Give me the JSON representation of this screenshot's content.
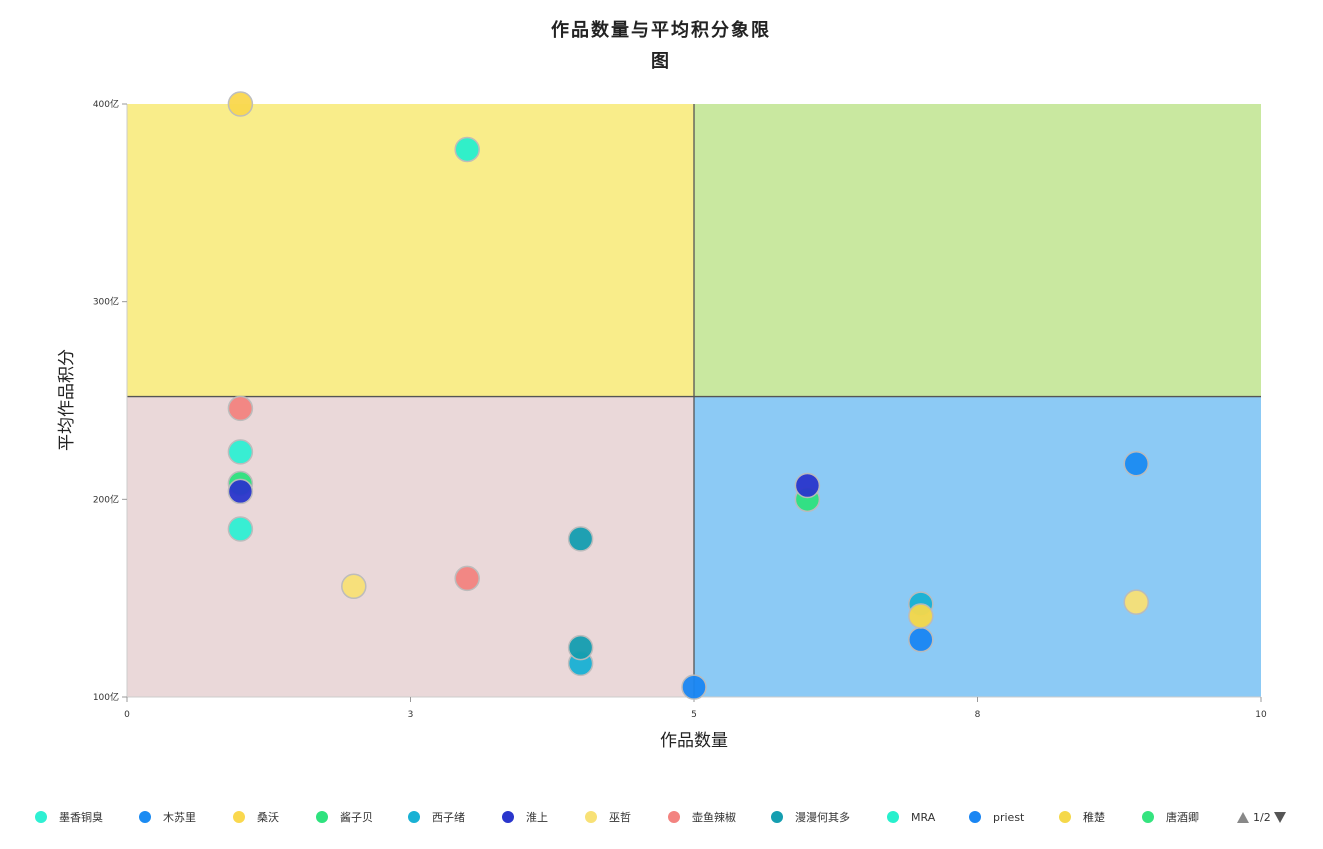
{
  "chart_data": {
    "type": "scatter",
    "title_line1": "作品数量与平均积分象限",
    "title_line2": "图",
    "xlabel": "作品数量",
    "ylabel": "平均作品积分",
    "xlim": [
      0,
      10
    ],
    "ylim": [
      100,
      400
    ],
    "x_ticks": [
      "0",
      "3",
      "5",
      "8",
      "10"
    ],
    "x_tick_values": [
      0,
      2.5,
      5,
      7.5,
      10
    ],
    "y_ticks": [
      "400亿",
      "300亿",
      "200亿",
      "100亿"
    ],
    "y_tick_values": [
      400,
      300,
      200,
      100
    ],
    "quadrant_split": {
      "x": 5,
      "y": 252
    },
    "quadrant_colors": {
      "top_left": "#f9ed8a",
      "top_right": "#c9e8a0",
      "bottom_left": "#ead8d9",
      "bottom_right": "#8ccaf5"
    },
    "series": [
      {
        "name": "墨香铜臭",
        "color": "#2ff0d3",
        "points": [
          [
            1,
            224
          ],
          [
            1,
            185
          ]
        ]
      },
      {
        "name": "木苏里",
        "color": "#1b8bf2",
        "points": [
          [
            8.9,
            218
          ]
        ]
      },
      {
        "name": "桑沃",
        "color": "#fad84e",
        "points": [
          [
            1,
            400
          ]
        ]
      },
      {
        "name": "酱子贝",
        "color": "#2ee27e",
        "points": [
          [
            1,
            208
          ],
          [
            6,
            200
          ]
        ]
      },
      {
        "name": "西子绪",
        "color": "#19b1d4",
        "points": [
          [
            4,
            117
          ],
          [
            7,
            147
          ]
        ]
      },
      {
        "name": "淮上",
        "color": "#2a36cc",
        "points": [
          [
            1,
            204
          ],
          [
            6,
            207
          ]
        ]
      },
      {
        "name": "巫哲",
        "color": "#f8e176",
        "points": [
          [
            2,
            156
          ],
          [
            8.9,
            148
          ]
        ]
      },
      {
        "name": "壶鱼辣椒",
        "color": "#f38380",
        "points": [
          [
            1,
            246
          ],
          [
            3,
            160
          ]
        ]
      },
      {
        "name": "漫漫何其多",
        "color": "#159eb0",
        "points": [
          [
            4,
            180
          ],
          [
            4,
            125
          ]
        ]
      },
      {
        "name": "MRA",
        "color": "#27f0cd",
        "points": [
          [
            3,
            377
          ]
        ]
      },
      {
        "name": "priest",
        "color": "#1a86f3",
        "points": [
          [
            7,
            129
          ],
          [
            5,
            105
          ]
        ]
      },
      {
        "name": "稚楚",
        "color": "#f5d84a",
        "points": [
          [
            7,
            141
          ]
        ]
      },
      {
        "name": "唐酒卿",
        "color": "#35e47f",
        "points": []
      }
    ]
  },
  "legend_pager": {
    "text": "1/2"
  }
}
